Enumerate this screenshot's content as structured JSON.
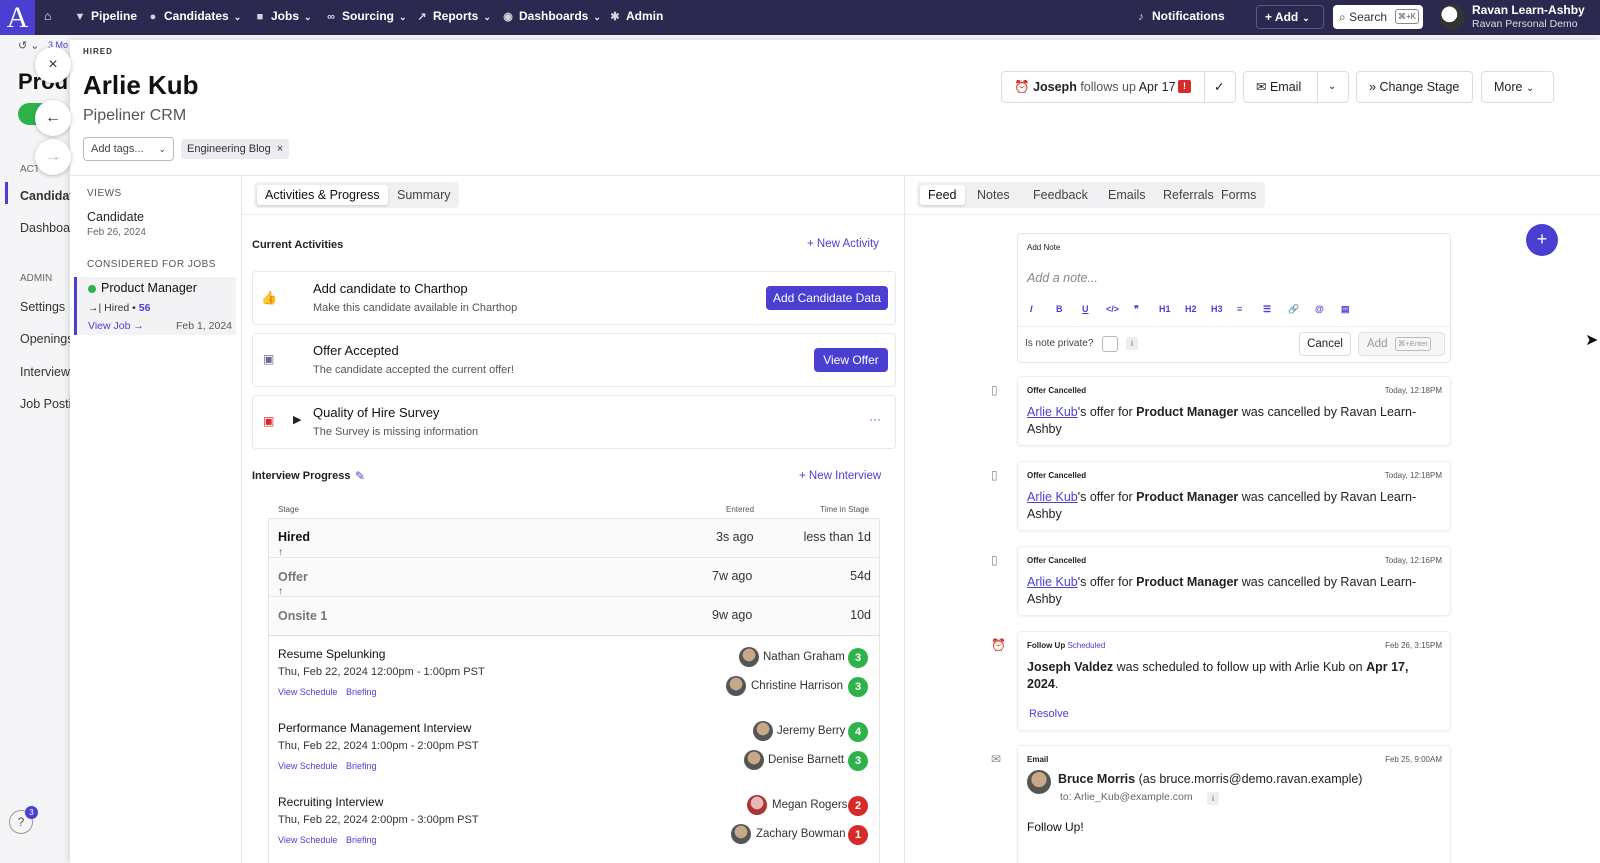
{
  "nav": {
    "logo": "A",
    "items": [
      {
        "label": "Pipeline",
        "icon": "funnel-icon"
      },
      {
        "label": "Candidates",
        "icon": "users-icon"
      },
      {
        "label": "Jobs",
        "icon": "briefcase-icon"
      },
      {
        "label": "Sourcing",
        "icon": "binoculars-icon"
      },
      {
        "label": "Reports",
        "icon": "chart-icon"
      },
      {
        "label": "Dashboards",
        "icon": "gauge-icon"
      },
      {
        "label": "Admin",
        "icon": "gear-icon"
      }
    ],
    "notifications": "Notifications",
    "add": "Add",
    "search": "Search",
    "search_shortcut": "⌘+K",
    "user_name": "Ravan Learn-Ashby",
    "user_org": "Ravan Personal Demo"
  },
  "background": {
    "history": "3 Mo",
    "title": "Prod",
    "section_act": "ACT",
    "candidates": "Candidat",
    "dashboards": "Dashboa",
    "admin": "ADMIN",
    "settings": "Settings",
    "openings": "Openings",
    "interviews": "Interview",
    "job_postings": "Job Posti",
    "help_count": "3"
  },
  "header": {
    "status": "HIRED",
    "name": "Arlie Kub",
    "company": "Pipeliner CRM",
    "add_tags_placeholder": "Add tags...",
    "tag": "Engineering Blog",
    "followup_name": "Joseph",
    "followup_mid": "follows up",
    "followup_date": "Apr 17",
    "email": "Email",
    "change_stage": "Change Stage",
    "more": "More"
  },
  "left": {
    "views_label": "VIEWS",
    "view_name": "Candidate",
    "view_date": "Feb 26, 2024",
    "considered_label": "CONSIDERED FOR JOBS",
    "job_title": "Product Manager",
    "job_stage": "Hired",
    "job_count": "56",
    "view_job": "View Job",
    "job_date": "Feb 1, 2024"
  },
  "middle": {
    "tabs": [
      "Activities & Progress",
      "Summary"
    ],
    "current_activities": "Current Activities",
    "new_activity": "New Activity",
    "activities": [
      {
        "title": "Add candidate to Charthop",
        "desc": "Make this candidate available in Charthop",
        "button": "Add Candidate Data"
      },
      {
        "title": "Offer Accepted",
        "desc": "The candidate accepted the current offer!",
        "button": "View Offer"
      },
      {
        "title": "Quality of Hire Survey",
        "desc": "The Survey is missing information",
        "button": "···"
      }
    ],
    "interview_progress": "Interview Progress",
    "new_interview": "New Interview",
    "col_stage": "Stage",
    "col_entered": "Entered",
    "col_time": "Time in Stage",
    "stages": [
      {
        "name": "Hired",
        "entered": "3s ago",
        "time": "less than 1d"
      },
      {
        "name": "Offer",
        "entered": "7w ago",
        "time": "54d"
      },
      {
        "name": "Onsite 1",
        "entered": "9w ago",
        "time": "10d"
      }
    ],
    "interviews": [
      {
        "title": "Resume Spelunking",
        "when": "Thu, Feb 22, 2024 12:00pm - 1:00pm PST",
        "schedule": "View Schedule",
        "briefing": "Briefing",
        "people": [
          {
            "name": "Nathan Graham",
            "score": "3"
          },
          {
            "name": "Christine Harrison",
            "score": "3"
          }
        ]
      },
      {
        "title": "Performance Management Interview",
        "when": "Thu, Feb 22, 2024 1:00pm - 2:00pm PST",
        "schedule": "View Schedule",
        "briefing": "Briefing",
        "people": [
          {
            "name": "Jeremy Berry",
            "score": "4"
          },
          {
            "name": "Denise Barnett",
            "score": "3"
          }
        ]
      },
      {
        "title": "Recruiting Interview",
        "when": "Thu, Feb 22, 2024 2:00pm - 3:00pm PST",
        "schedule": "View Schedule",
        "briefing": "Briefing",
        "people": [
          {
            "name": "Megan Rogers",
            "score": "2"
          },
          {
            "name": "Zachary Bowman",
            "score": "1"
          }
        ]
      }
    ]
  },
  "right": {
    "tabs": [
      "Feed",
      "Notes",
      "Feedback",
      "Emails",
      "Referrals",
      "Forms"
    ],
    "add_note_label": "Add Note",
    "note_placeholder": "Add a note...",
    "private_label": "Is note private?",
    "info": "i",
    "cancel": "Cancel",
    "add": "Add",
    "add_shortcut": "⌘+Enter",
    "toolbar": [
      "I",
      "B",
      "U",
      "</>",
      "❞",
      "H1",
      "H2",
      "H3",
      "≡",
      "☰",
      "🔗",
      "@",
      "▤"
    ],
    "feed": [
      {
        "type": "Offer Cancelled",
        "time": "Today, 12:18PM",
        "who": "Arlie Kub",
        "text_a": "'s offer for ",
        "job": "Product Manager",
        "text_b": " was cancelled by Ravan Learn-Ashby"
      },
      {
        "type": "Offer Cancelled",
        "time": "Today, 12:18PM",
        "who": "Arlie Kub",
        "text_a": "'s offer for ",
        "job": "Product Manager",
        "text_b": " was cancelled by Ravan Learn-Ashby"
      },
      {
        "type": "Offer Cancelled",
        "time": "Today, 12:16PM",
        "who": "Arlie Kub",
        "text_a": "'s offer for ",
        "job": "Product Manager",
        "text_b": " was cancelled by Ravan Learn-Ashby"
      }
    ],
    "followup": {
      "type": "Follow Up",
      "status": "Scheduled",
      "time": "Feb 26, 3:15PM",
      "who": "Joseph Valdez",
      "text": " was scheduled to follow up with Arlie Kub on ",
      "date": "Apr 17, 2024",
      "tail": ".",
      "resolve": "Resolve"
    },
    "email": {
      "type": "Email",
      "time": "Feb 25, 9:00AM",
      "sender": "Bruce Morris",
      "sender_addr": "(as bruce.morris@demo.ravan.example)",
      "to": "to: Arlie_Kub@example.com",
      "info": "i",
      "body": "Follow Up!"
    }
  },
  "colors": {
    "accent": "#4b3fd1",
    "nav_bg": "#2b2950",
    "green": "#2eb34a",
    "red": "#d52b2b"
  }
}
